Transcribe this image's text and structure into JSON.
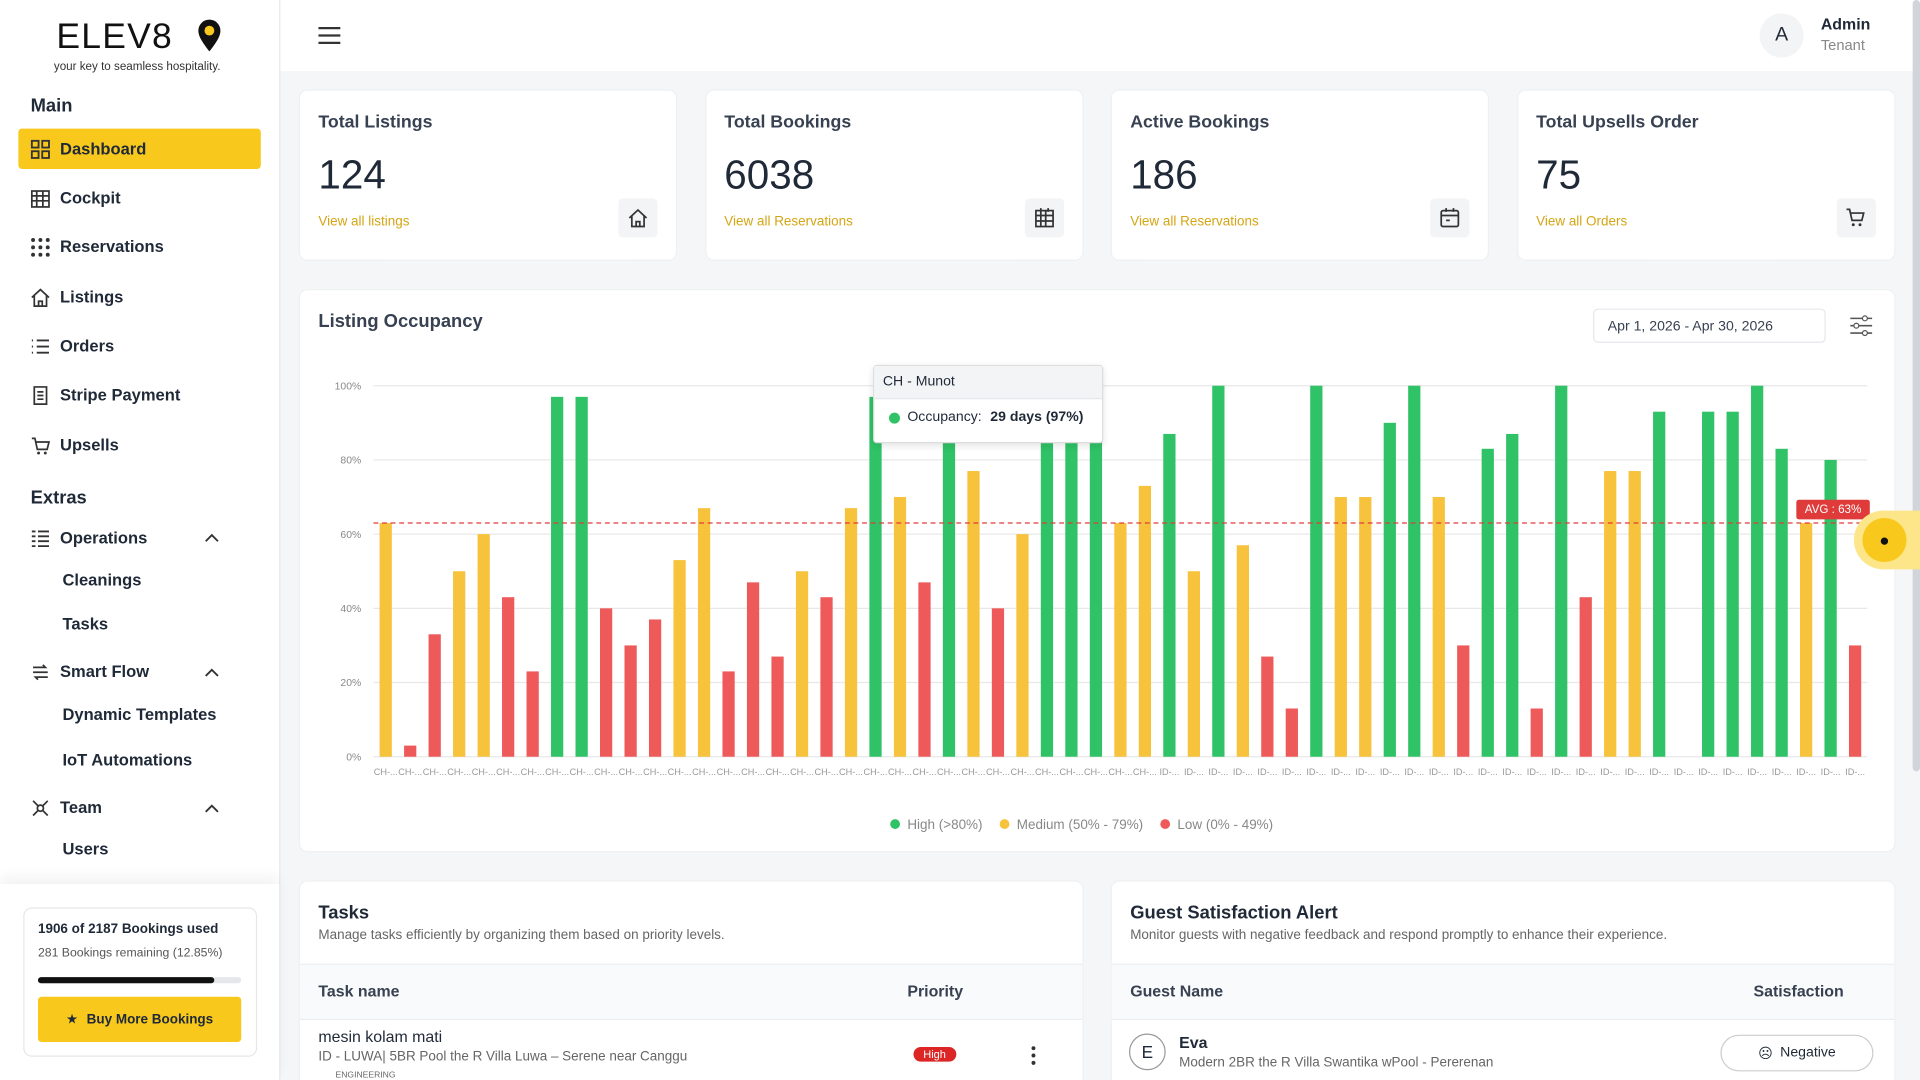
{
  "sidebar": {
    "logo": "ELEV8",
    "tagline": "your key to seamless hospitality.",
    "main_title": "Main",
    "main_items": [
      "Dashboard",
      "Cockpit",
      "Reservations",
      "Listings",
      "Orders",
      "Stripe Payment",
      "Upsells"
    ],
    "extras_title": "Extras",
    "groups": [
      {
        "name": "Operations",
        "items": [
          "Cleanings",
          "Tasks"
        ]
      },
      {
        "name": "Smart Flow",
        "items": [
          "Dynamic Templates",
          "IoT Automations"
        ]
      },
      {
        "name": "Team",
        "items": [
          "Users"
        ]
      }
    ],
    "usage": {
      "title": "1906 of 2187 Bookings used",
      "subtitle": "281 Bookings remaining (12.85%)",
      "progress": 87,
      "button": "Buy More Bookings"
    }
  },
  "header": {
    "initial": "A",
    "name": "Admin",
    "role": "Tenant"
  },
  "stats": [
    {
      "title": "Total Listings",
      "value": 124,
      "link": "View all listings"
    },
    {
      "title": "Total Bookings",
      "value": 6038,
      "link": "View all Reservations"
    },
    {
      "title": "Active Bookings",
      "value": 186,
      "link": "View all Reservations"
    },
    {
      "title": "Total Upsells Order",
      "value": 75,
      "link": "View all Orders"
    }
  ],
  "chart_data": {
    "type": "bar",
    "title": "Listing Occupancy",
    "date_range": "Apr 1, 2026 - Apr 30, 2026",
    "categories": [
      "CH-...",
      "CH-...",
      "CH-...",
      "CH-...",
      "CH-...",
      "CH-...",
      "CH-...",
      "CH-...",
      "CH-...",
      "CH-...",
      "CH-...",
      "CH-...",
      "CH-...",
      "CH-...",
      "CH-...",
      "CH-...",
      "CH-...",
      "CH-...",
      "CH-...",
      "CH-...",
      "CH-...",
      "CH-...",
      "CH-...",
      "CH-...",
      "CH-...",
      "CH-...",
      "CH-...",
      "CH-...",
      "CH-...",
      "CH-...",
      "CH-...",
      "CH-...",
      "ID-...",
      "ID-...",
      "ID-...",
      "ID-...",
      "ID-...",
      "ID-...",
      "ID-...",
      "ID-...",
      "ID-...",
      "ID-...",
      "ID-...",
      "ID-...",
      "ID-...",
      "ID-...",
      "ID-...",
      "ID-...",
      "ID-...",
      "ID-...",
      "ID-...",
      "ID-...",
      "ID-...",
      "ID-...",
      "ID-...",
      "ID-...",
      "ID-...",
      "ID-...",
      "ID-...",
      "ID-...",
      "ID-..."
    ],
    "values": [
      63,
      3,
      33,
      50,
      60,
      43,
      23,
      97,
      97,
      40,
      30,
      37,
      53,
      67,
      23,
      47,
      27,
      50,
      43,
      67,
      97,
      70,
      47,
      87,
      77,
      40,
      60,
      87,
      87,
      87,
      63,
      73,
      87,
      50,
      100,
      57,
      27,
      13,
      100,
      70,
      70,
      90,
      100,
      70,
      30,
      83,
      87,
      13,
      100,
      43,
      77,
      77,
      93,
      0,
      93,
      93,
      100,
      83,
      63,
      80,
      30
    ],
    "colors": [
      "#f7c23c",
      "#ee5a5a",
      "#ee5a5a",
      "#f7c23c",
      "#f7c23c",
      "#ee5a5a",
      "#ee5a5a",
      "#2fc266",
      "#2fc266",
      "#ee5a5a",
      "#ee5a5a",
      "#ee5a5a",
      "#f7c23c",
      "#f7c23c",
      "#ee5a5a",
      "#ee5a5a",
      "#ee5a5a",
      "#f7c23c",
      "#ee5a5a",
      "#f7c23c",
      "#2fc266",
      "#f7c23c",
      "#ee5a5a",
      "#2fc266",
      "#f7c23c",
      "#ee5a5a",
      "#f7c23c",
      "#2fc266",
      "#2fc266",
      "#2fc266",
      "#f7c23c",
      "#f7c23c",
      "#2fc266",
      "#f7c23c",
      "#2fc266",
      "#f7c23c",
      "#ee5a5a",
      "#ee5a5a",
      "#2fc266",
      "#f7c23c",
      "#f7c23c",
      "#2fc266",
      "#2fc266",
      "#f7c23c",
      "#ee5a5a",
      "#2fc266",
      "#2fc266",
      "#ee5a5a",
      "#2fc266",
      "#ee5a5a",
      "#f7c23c",
      "#f7c23c",
      "#2fc266",
      "#ee5a5a",
      "#2fc266",
      "#2fc266",
      "#2fc266",
      "#2fc266",
      "#f7c23c",
      "#2fc266",
      "#ee5a5a"
    ],
    "ylim": [
      0,
      100
    ],
    "yticks": [
      {
        "value": 0,
        "label": "0%"
      },
      {
        "value": 20,
        "label": "20%"
      },
      {
        "value": 40,
        "label": "40%"
      },
      {
        "value": 60,
        "label": "60%"
      },
      {
        "value": 80,
        "label": "80%"
      },
      {
        "value": 100,
        "label": "100%"
      }
    ],
    "grid": true,
    "average": {
      "value": 63,
      "label": "AVG : 63%",
      "color": "#e03b3b"
    },
    "legend": [
      {
        "name": "High (>80%)",
        "color": "#2fc266"
      },
      {
        "name": "Medium (50% - 79%)",
        "color": "#f7c23c"
      },
      {
        "name": "Low (0% - 49%)",
        "color": "#ee5a5a"
      }
    ],
    "tooltip": {
      "title": "CH - Munot",
      "label": "Occupancy:",
      "value": "29 days (97%)"
    }
  },
  "tasks": {
    "title": "Tasks",
    "description": "Manage tasks efficiently by organizing them based on priority levels.",
    "columns": [
      "Task name",
      "Priority"
    ],
    "rows": [
      {
        "name": "mesin kolam mati",
        "detail": "ID - LUWA| 5BR Pool the R Villa Luwa – Serene near Canggu",
        "tag": "ENGINEERING",
        "priority": "High"
      }
    ]
  },
  "guest_alert": {
    "title": "Guest Satisfaction Alert",
    "description": "Monitor guests with negative feedback and respond promptly to enhance their experience.",
    "columns": [
      "Guest Name",
      "Satisfaction"
    ],
    "rows": [
      {
        "initial": "E",
        "name": "Eva",
        "listing": "Modern 2BR the R Villa Swantika wPool - Pererenan",
        "satisfaction": "Negative"
      }
    ]
  }
}
